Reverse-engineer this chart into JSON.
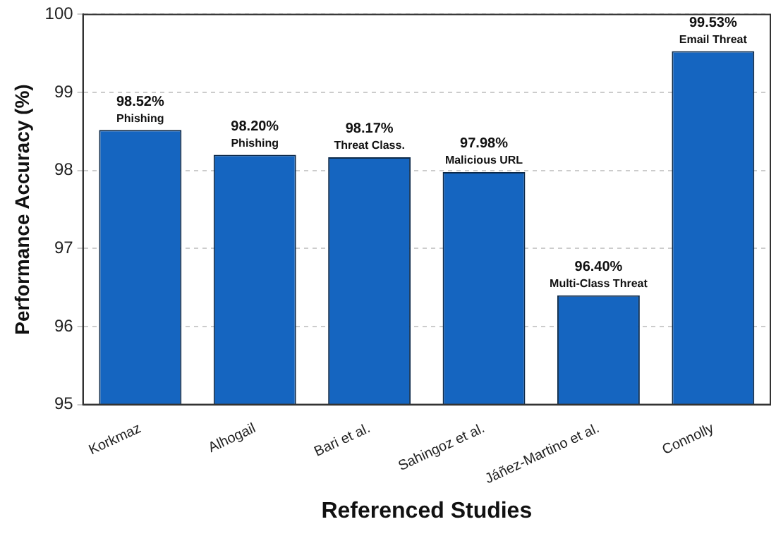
{
  "chart_data": {
    "type": "bar",
    "xlabel": "Referenced Studies",
    "ylabel": "Performance Accuracy (%)",
    "categories": [
      "Korkmaz",
      "Alhogail",
      "Bari et al.",
      "Sahingoz et al.",
      "Jáñez-Martino et al.",
      "Connolly"
    ],
    "values": [
      98.52,
      98.2,
      98.17,
      97.98,
      96.4,
      99.53
    ],
    "value_labels": [
      "98.52%",
      "98.20%",
      "98.17%",
      "97.98%",
      "96.40%",
      "99.53%"
    ],
    "annotations": [
      {
        "text": "Phishing",
        "x": "Korkmaz",
        "y": 98.52
      },
      {
        "text": "Phishing",
        "x": "Alhogail",
        "y": 98.2
      },
      {
        "text": "Threat Class.",
        "x": "Bari et al.",
        "y": 98.17
      },
      {
        "text": "Malicious URL",
        "x": "Sahingoz et al.",
        "y": 97.98
      },
      {
        "text": "Multi-Class Threat",
        "x": "Jáñez-Martino et al.",
        "y": 96.4
      },
      {
        "text": "Email Threat",
        "x": "Connolly",
        "y": 99.53
      }
    ],
    "color": "#1565c0",
    "ylim": [
      95,
      100
    ],
    "yticks": [
      95,
      96,
      97,
      98,
      99,
      100
    ],
    "grid": "y",
    "legend": false
  }
}
